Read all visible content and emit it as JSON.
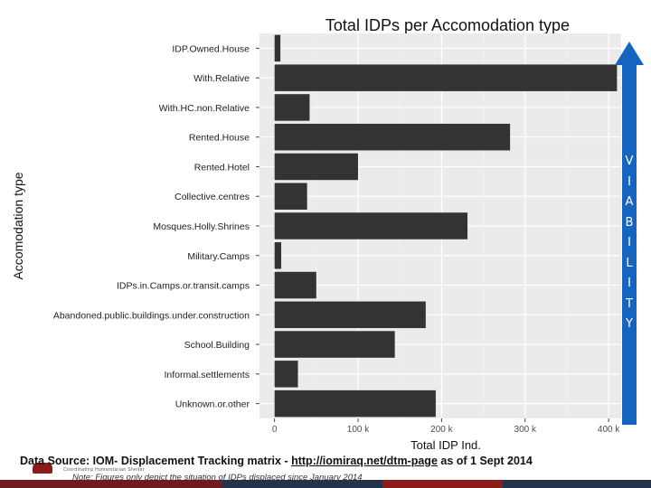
{
  "chart_data": {
    "type": "bar",
    "orientation": "horizontal",
    "title": "Total IDPs per Accomodation type",
    "xlabel": "Total IDP Ind.",
    "ylabel": "Accomodation type",
    "categories": [
      "IDP.Owned.House",
      "With.Relative",
      "With.HC.non.Relative",
      "Rented.House",
      "Rented.Hotel",
      "Collective.centres",
      "Mosques.Holly.Shrines",
      "Military.Camps",
      "IDPs.in.Camps.or.transit.camps",
      "Abandoned.public.buildings.under.construction",
      "School.Building",
      "Informal.settlements",
      "Unknown.or.other"
    ],
    "values": [
      7000,
      410000,
      42000,
      282000,
      100000,
      39000,
      231000,
      8000,
      50000,
      181000,
      144000,
      28000,
      193000
    ],
    "xlim": [
      -18000,
      415000
    ],
    "xticks": [
      0,
      100000,
      200000,
      300000,
      400000
    ],
    "xtick_labels": [
      "0",
      "100 k",
      "200 k",
      "300 k",
      "400 k"
    ],
    "grid": true,
    "bar_color": "#333333"
  },
  "sidebar": {
    "letters": [
      "V",
      "I",
      "A",
      "B",
      "I",
      "L",
      "I",
      "T",
      "Y"
    ],
    "color": "#1565c0"
  },
  "footer": {
    "source_prefix": "Data Source: IOM- Displacement Tracking matrix - ",
    "source_link": "http://iomiraq.net/dtm-page",
    "source_suffix": " as of 1 Sept 2014",
    "note": "Note: Figures only depict the situation of IDPs displaced since January 2014",
    "logo_subtitle": "Coordinating Humanitarian Shelter",
    "bar_colors": [
      "#6d1a22",
      "#24324a",
      "#8b1c1c",
      "#24324a"
    ]
  }
}
